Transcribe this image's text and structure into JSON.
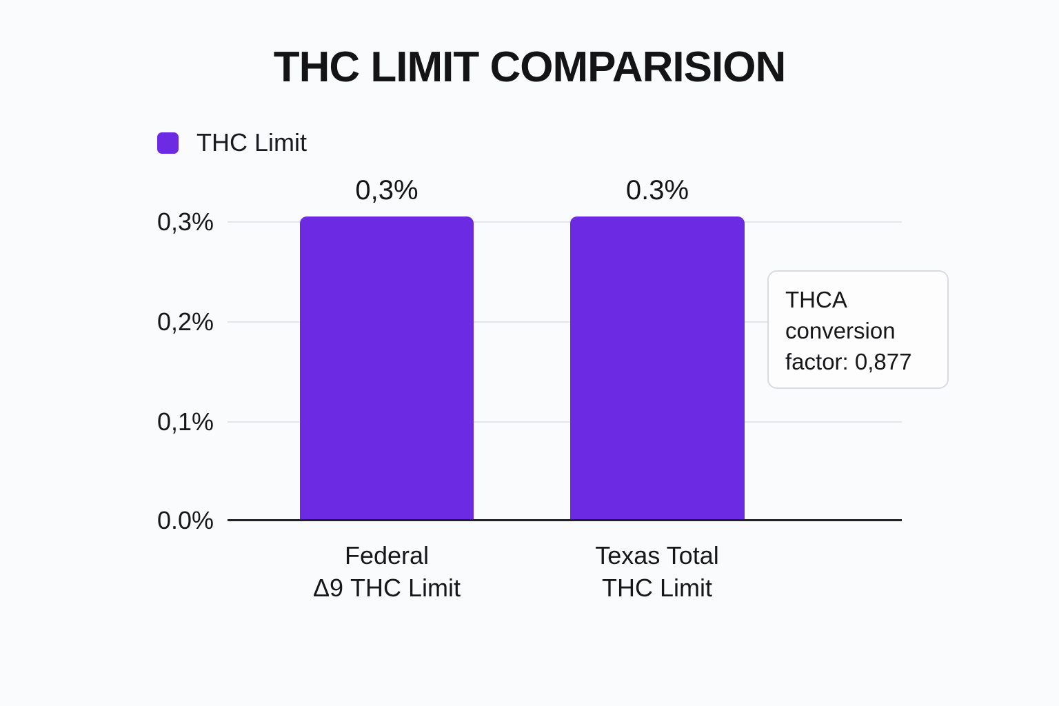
{
  "title": "THC LIMIT COMPARISION",
  "legend": {
    "label": "THC Limit",
    "swatch_color": "#6C2BE2"
  },
  "y_axis": {
    "tick_03": "0,3%",
    "tick_02": "0,2%",
    "tick_01": "0,1%",
    "tick_00": "0.0%"
  },
  "bars": [
    {
      "value_label": "0,3%",
      "category_line1": "Federal",
      "category_line2": "Δ9 THC Limit"
    },
    {
      "value_label": "0.3%",
      "category_line1": "Texas Total",
      "category_line2": "THC Limit"
    }
  ],
  "annotation": {
    "text": "THCA conversion factor: 0,877"
  },
  "colors": {
    "bar": "#6C2BE2",
    "background": "#FAFBFD",
    "gridline": "#E4E5E9",
    "axis": "#212126",
    "text": "#17171A",
    "annotation_border": "#DADBE0"
  },
  "chart_data": {
    "type": "bar",
    "title": "THC LIMIT COMPARISION",
    "series": [
      {
        "name": "THC Limit",
        "values": [
          0.3,
          0.3
        ]
      }
    ],
    "categories": [
      "Federal Δ9 THC Limit",
      "Texas Total THC Limit"
    ],
    "value_labels": [
      "0,3%",
      "0.3%"
    ],
    "xlabel": "",
    "ylabel": "",
    "ylim": [
      0,
      0.35
    ],
    "yticks": [
      "0.0%",
      "0,1%",
      "0,2%",
      "0,3%"
    ],
    "grid": true,
    "legend_position": "top-left",
    "bar_color": "#6C2BE2",
    "annotations": [
      "THCA conversion factor: 0,877"
    ]
  }
}
